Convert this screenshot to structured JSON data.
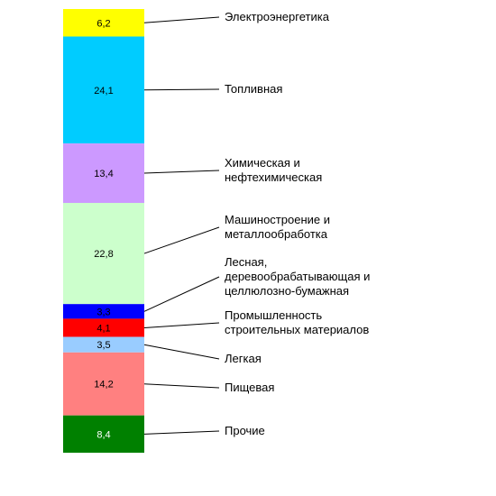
{
  "chart_data": {
    "type": "bar",
    "stacked": true,
    "unit": "%",
    "total": 100,
    "segments": [
      {
        "value": 6.2,
        "value_label": "6,2",
        "label_lines": [
          "Электроэнергетика"
        ],
        "color": "#ffff00",
        "value_color": "#000000"
      },
      {
        "value": 24.1,
        "value_label": "24,1",
        "label_lines": [
          "Топливная"
        ],
        "color": "#00ccff",
        "value_color": "#000000"
      },
      {
        "value": 13.4,
        "value_label": "13,4",
        "label_lines": [
          "Химическая и",
          "нефтехимическая"
        ],
        "color": "#cc99ff",
        "value_color": "#000000"
      },
      {
        "value": 22.8,
        "value_label": "22,8",
        "label_lines": [
          "Машиностроение и",
          "металлообработка"
        ],
        "color": "#ccffcc",
        "value_color": "#000000"
      },
      {
        "value": 3.3,
        "value_label": "3,3",
        "label_lines": [
          "Лесная,",
          "деревообрабатывающая и",
          "целлюлозно-бумажная"
        ],
        "color": "#0000ff",
        "value_color": "#000000"
      },
      {
        "value": 4.1,
        "value_label": "4,1",
        "label_lines": [
          "Промышленность",
          "строительных материалов"
        ],
        "color": "#ff0000",
        "value_color": "#000000"
      },
      {
        "value": 3.5,
        "value_label": "3,5",
        "label_lines": [
          "Легкая"
        ],
        "color": "#99ccff",
        "value_color": "#000000"
      },
      {
        "value": 14.2,
        "value_label": "14,2",
        "label_lines": [
          "Пищевая"
        ],
        "color": "#ff8080",
        "value_color": "#000000"
      },
      {
        "value": 8.4,
        "value_label": "8,4",
        "label_lines": [
          "Прочие"
        ],
        "color": "#008000",
        "value_color": "#ffffff"
      }
    ]
  }
}
